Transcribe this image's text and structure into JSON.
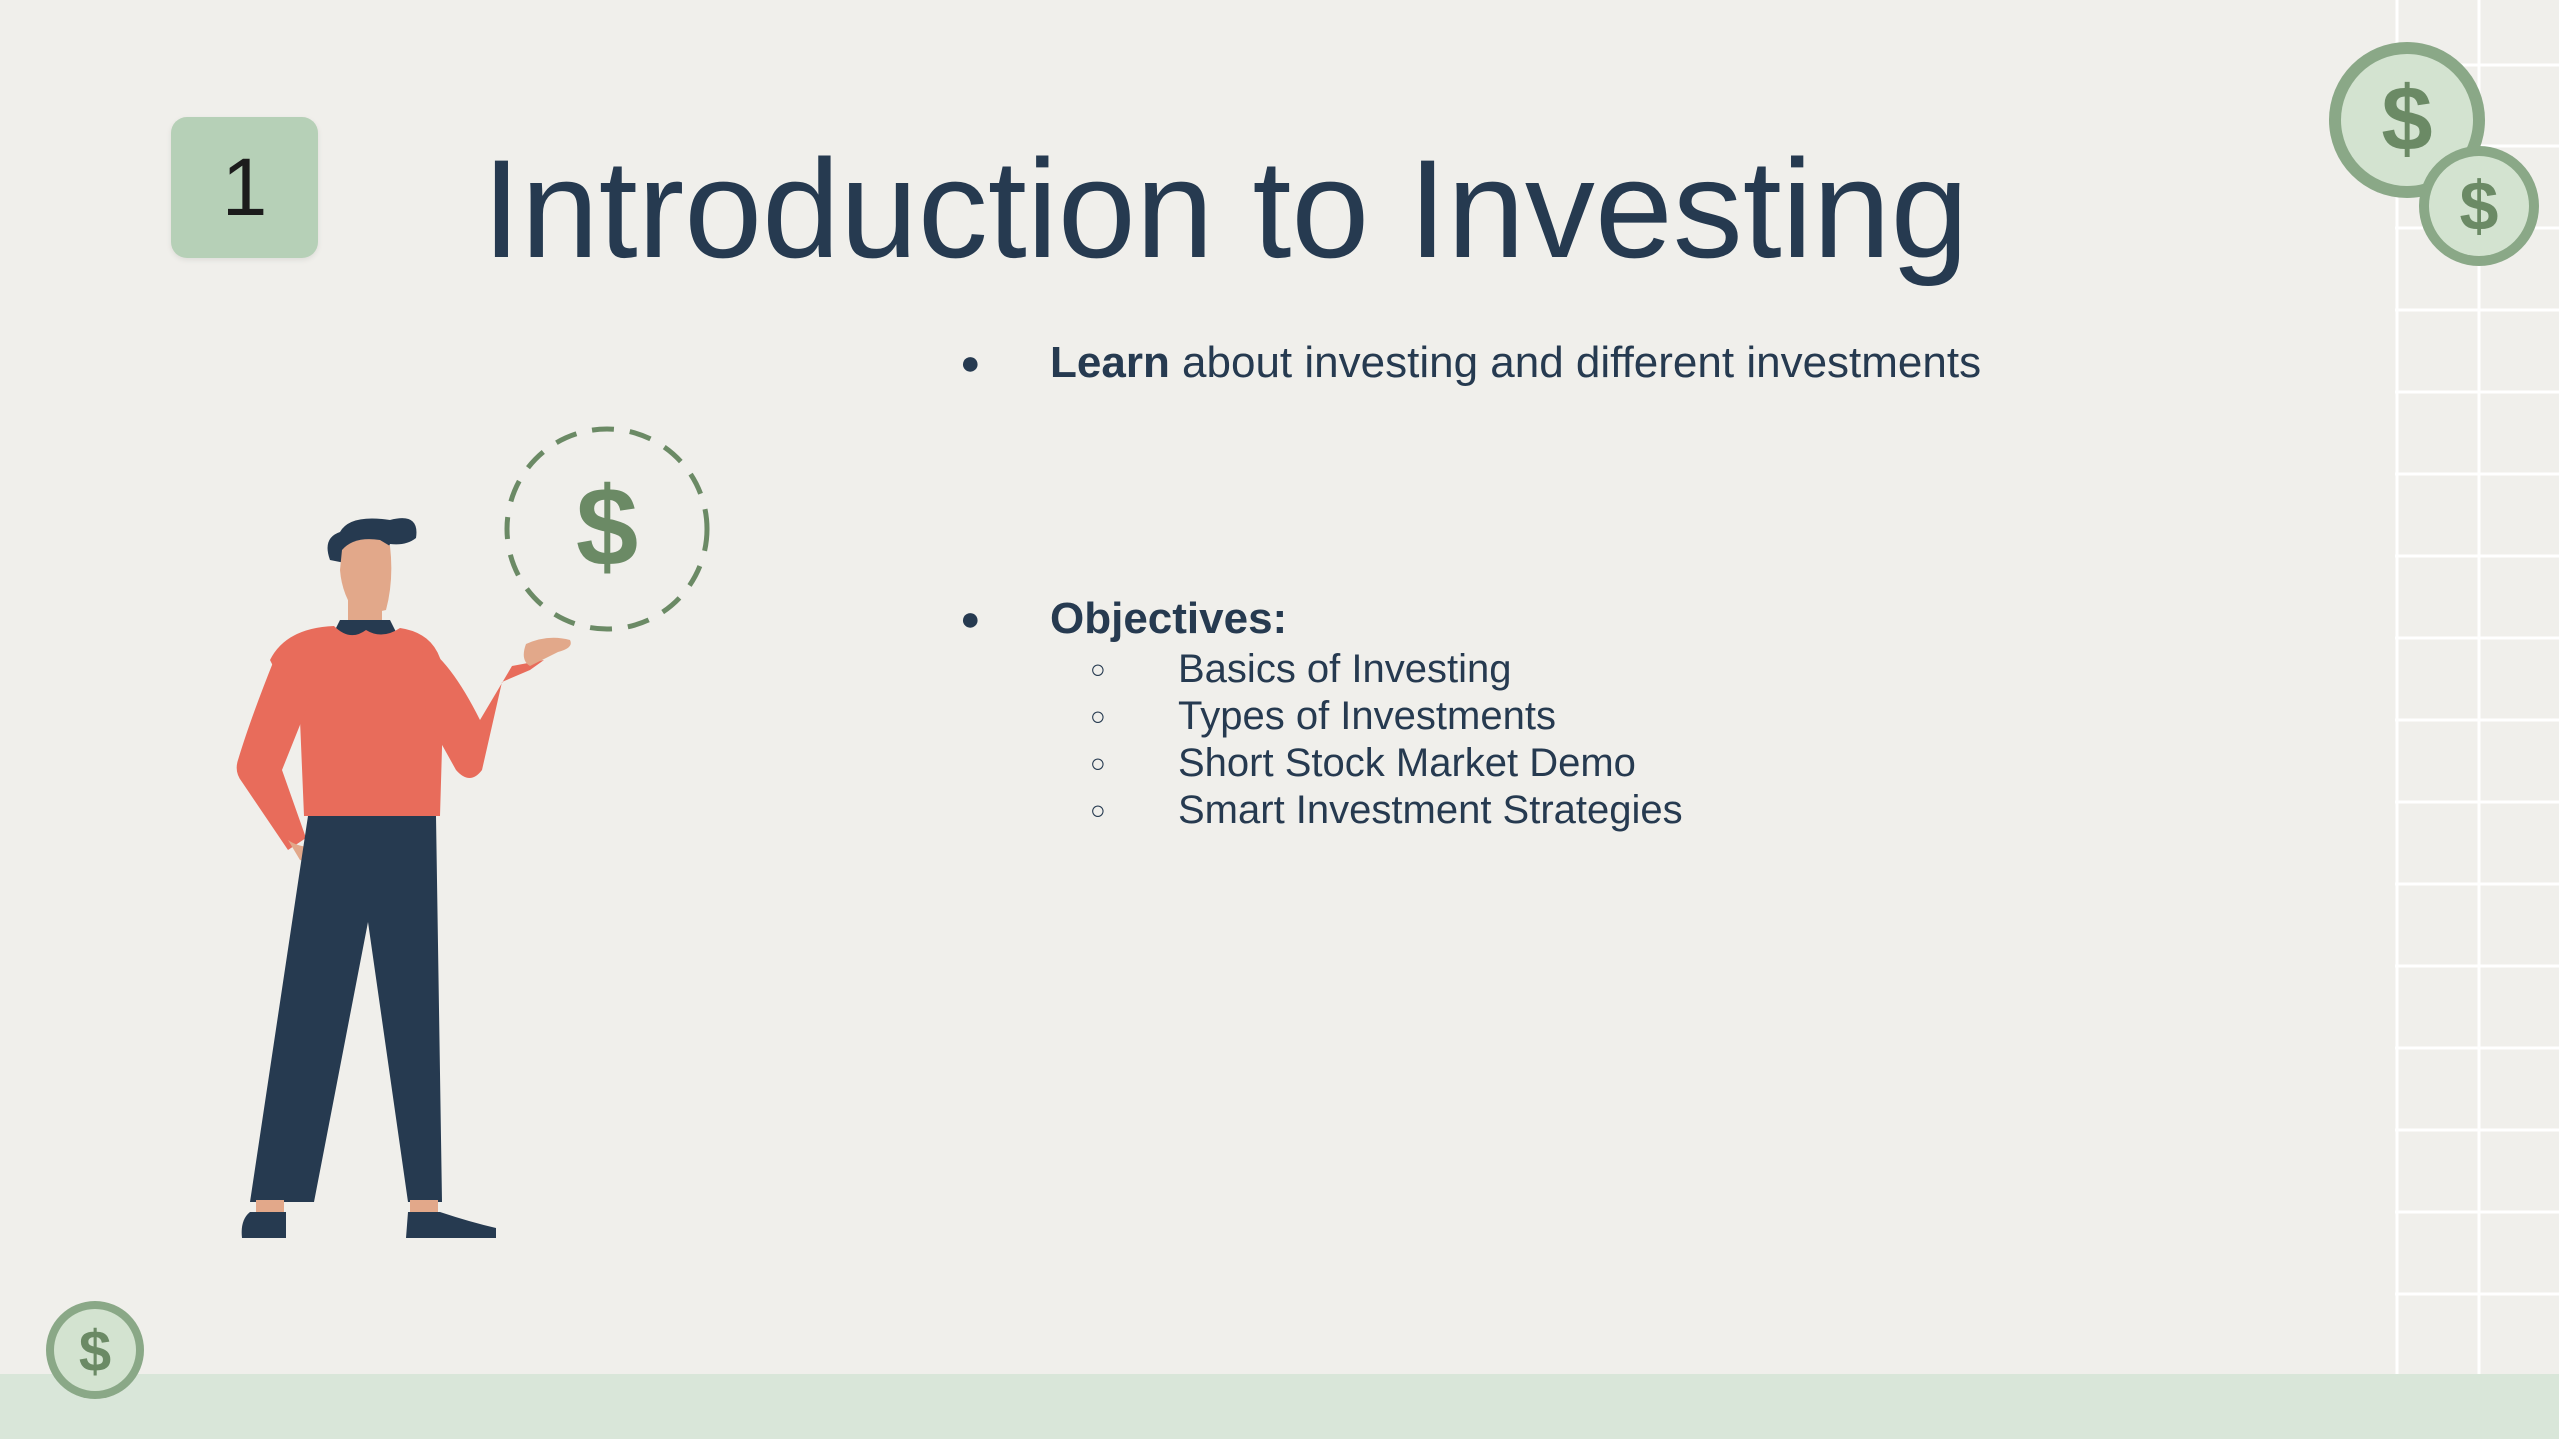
{
  "slide": {
    "number": "1",
    "title": "Introduction to Investing"
  },
  "content": {
    "bullet1": {
      "bold": "Learn",
      "rest": " about investing and different investments"
    },
    "bullet2": {
      "bold": "Objectives:"
    },
    "objectives": [
      "Basics of Investing",
      "Types of Investments",
      "Short Stock Market Demo",
      "Smart Investment Strategies"
    ]
  },
  "glyphs": {
    "bullet": "●",
    "sub_bullet": "○",
    "currency": "$"
  },
  "colors": {
    "background": "#f0efeb",
    "text": "#263a50",
    "accent_green": "#6b8a65",
    "tile_green": "#b6d0b7",
    "shirt": "#e86c5b",
    "pants": "#263a50"
  }
}
